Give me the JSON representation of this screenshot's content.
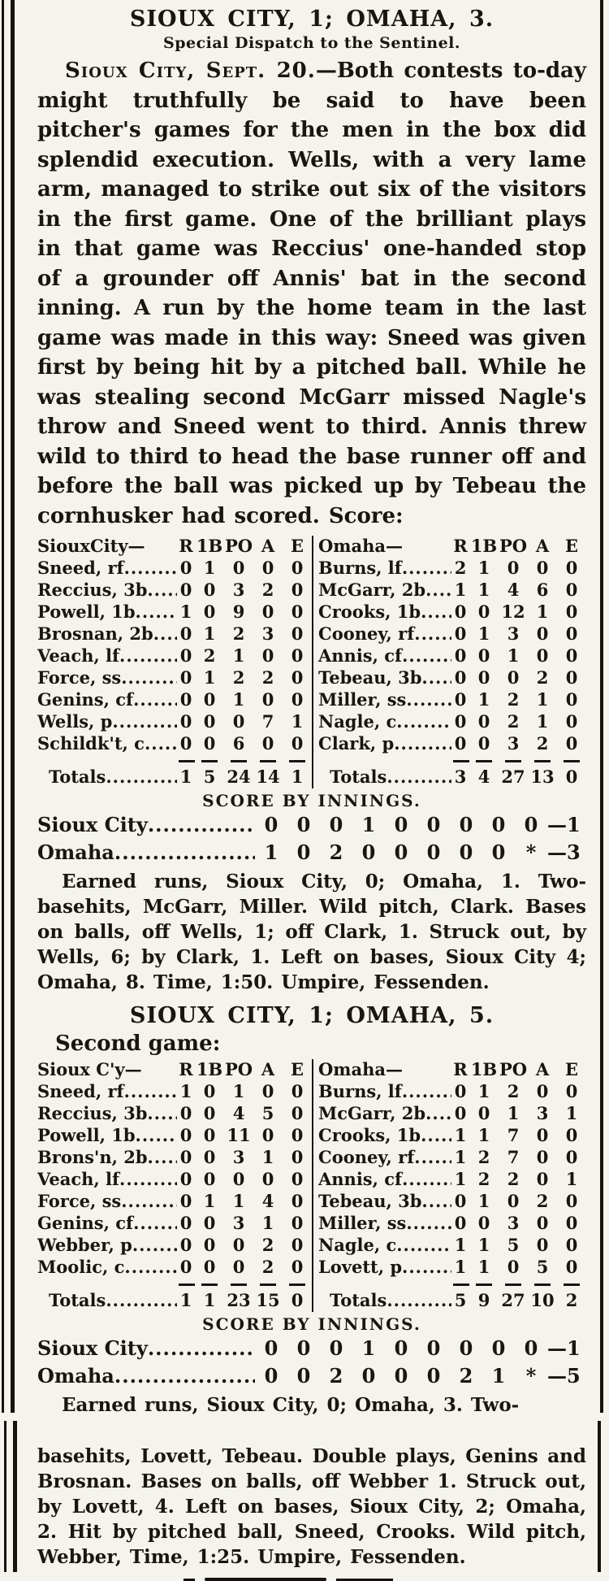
{
  "article": {
    "headline1": "SIOUX CITY, 1; OMAHA, 3.",
    "dispatch_credit": "Special Dispatch to the Sentinel.",
    "dateline": "Sioux City, Sept. 20.",
    "lead_body": "—Both contests to-day might truthfully be said to have been pitcher's games for the men in the box did splendid execution. Wells, with a very lame arm, managed to strike out six of the visitors in the first game. One of the brilliant plays in that game was Reccius' one-handed stop of a grounder off Annis' bat in the second inning. A run by the home team in the last game was made in this way: Sneed was given first by being hit by a pitched ball. While he was stealing second McGarr missed Nagle's throw and Sneed went to third. Annis threw wild to third to head the base runner off and before the ball was picked up by Tebeau the cornhusker had scored. Score:",
    "headline2": "SIOUX CITY, 1; OMAHA, 5.",
    "second_game_label": "Second game:"
  },
  "game1": {
    "stat_columns": [
      "R",
      "1B",
      "PO",
      "A",
      "E"
    ],
    "home": {
      "team_label": "SiouxCity—",
      "players": [
        {
          "name": "Sneed, rf",
          "stats": [
            "0",
            "1",
            "0",
            "0",
            "0"
          ]
        },
        {
          "name": "Reccius, 3b",
          "stats": [
            "0",
            "0",
            "3",
            "2",
            "0"
          ]
        },
        {
          "name": "Powell, 1b",
          "stats": [
            "1",
            "0",
            "9",
            "0",
            "0"
          ]
        },
        {
          "name": "Brosnan, 2b",
          "stats": [
            "0",
            "1",
            "2",
            "3",
            "0"
          ]
        },
        {
          "name": "Veach, lf",
          "stats": [
            "0",
            "2",
            "1",
            "0",
            "0"
          ]
        },
        {
          "name": "Force, ss",
          "stats": [
            "0",
            "1",
            "2",
            "2",
            "0"
          ]
        },
        {
          "name": "Genins, cf",
          "stats": [
            "0",
            "0",
            "1",
            "0",
            "0"
          ]
        },
        {
          "name": "Wells, p",
          "stats": [
            "0",
            "0",
            "0",
            "7",
            "1"
          ]
        },
        {
          "name": "Schildk't, c",
          "stats": [
            "0",
            "0",
            "6",
            "0",
            "0"
          ]
        }
      ],
      "totals_label": "Totals",
      "totals": [
        "1",
        "5",
        "24",
        "14",
        "1"
      ]
    },
    "visitors": {
      "team_label": "Omaha—",
      "players": [
        {
          "name": "Burns, lf",
          "stats": [
            "2",
            "1",
            "0",
            "0",
            "0"
          ]
        },
        {
          "name": "McGarr, 2b",
          "stats": [
            "1",
            "1",
            "4",
            "6",
            "0"
          ]
        },
        {
          "name": "Crooks, 1b",
          "stats": [
            "0",
            "0",
            "12",
            "1",
            "0"
          ]
        },
        {
          "name": "Cooney, rf",
          "stats": [
            "0",
            "1",
            "3",
            "0",
            "0"
          ]
        },
        {
          "name": "Annis, cf",
          "stats": [
            "0",
            "0",
            "1",
            "0",
            "0"
          ]
        },
        {
          "name": "Tebeau, 3b",
          "stats": [
            "0",
            "0",
            "0",
            "2",
            "0"
          ]
        },
        {
          "name": "Miller, ss",
          "stats": [
            "0",
            "1",
            "2",
            "1",
            "0"
          ]
        },
        {
          "name": "Nagle, c",
          "stats": [
            "0",
            "0",
            "2",
            "1",
            "0"
          ]
        },
        {
          "name": "Clark, p",
          "stats": [
            "0",
            "0",
            "3",
            "2",
            "0"
          ]
        }
      ],
      "totals_label": "Totals",
      "totals": [
        "3",
        "4",
        "27",
        "13",
        "0"
      ]
    },
    "score_by_innings": {
      "title": "SCORE BY INNINGS.",
      "rows": [
        {
          "team": "Sioux City",
          "innings": [
            "0",
            "0",
            "0",
            "1",
            "0",
            "0",
            "0",
            "0",
            "0"
          ],
          "total": "1"
        },
        {
          "team": "Omaha",
          "innings": [
            "1",
            "0",
            "2",
            "0",
            "0",
            "0",
            "0",
            "0",
            "*"
          ],
          "total": "3"
        }
      ]
    },
    "notes": "Earned runs, Sioux City, 0; Omaha, 1. Two-basehits, McGarr, Miller. Wild pitch, Clark. Bases on balls, off Wells, 1; off Clark, 1. Struck out, by Wells, 6; by Clark, 1. Left on bases, Sioux City 4; Omaha, 8. Time, 1:50. Umpire, Fessenden."
  },
  "game2": {
    "stat_columns": [
      "R",
      "1B",
      "PO",
      "A",
      "E"
    ],
    "home": {
      "team_label": "Sioux C'y—",
      "players": [
        {
          "name": "Sneed, rf",
          "stats": [
            "1",
            "0",
            "1",
            "0",
            "0"
          ]
        },
        {
          "name": "Reccius, 3b",
          "stats": [
            "0",
            "0",
            "4",
            "5",
            "0"
          ]
        },
        {
          "name": "Powell, 1b",
          "stats": [
            "0",
            "0",
            "11",
            "0",
            "0"
          ]
        },
        {
          "name": "Brons'n, 2b",
          "stats": [
            "0",
            "0",
            "3",
            "1",
            "0"
          ]
        },
        {
          "name": "Veach, lf",
          "stats": [
            "0",
            "0",
            "0",
            "0",
            "0"
          ]
        },
        {
          "name": "Force, ss",
          "stats": [
            "0",
            "1",
            "1",
            "4",
            "0"
          ]
        },
        {
          "name": "Genins, cf",
          "stats": [
            "0",
            "0",
            "3",
            "1",
            "0"
          ]
        },
        {
          "name": "Webber, p",
          "stats": [
            "0",
            "0",
            "0",
            "2",
            "0"
          ]
        },
        {
          "name": "Moolic, c",
          "stats": [
            "0",
            "0",
            "0",
            "2",
            "0"
          ]
        }
      ],
      "totals_label": "Totals",
      "totals": [
        "1",
        "1",
        "23",
        "15",
        "0"
      ]
    },
    "visitors": {
      "team_label": "Omaha—",
      "players": [
        {
          "name": "Burns, lf",
          "stats": [
            "0",
            "1",
            "2",
            "0",
            "0"
          ]
        },
        {
          "name": "McGarr, 2b",
          "stats": [
            "0",
            "0",
            "1",
            "3",
            "1"
          ]
        },
        {
          "name": "Crooks, 1b",
          "stats": [
            "1",
            "1",
            "7",
            "0",
            "0"
          ]
        },
        {
          "name": "Cooney, rf",
          "stats": [
            "1",
            "2",
            "7",
            "0",
            "0"
          ]
        },
        {
          "name": "Annis, cf",
          "stats": [
            "1",
            "2",
            "2",
            "0",
            "1"
          ]
        },
        {
          "name": "Tebeau, 3b",
          "stats": [
            "0",
            "1",
            "0",
            "2",
            "0"
          ]
        },
        {
          "name": "Miller, ss",
          "stats": [
            "0",
            "0",
            "3",
            "0",
            "0"
          ]
        },
        {
          "name": "Nagle, c",
          "stats": [
            "1",
            "1",
            "5",
            "0",
            "0"
          ]
        },
        {
          "name": "Lovett, p",
          "stats": [
            "1",
            "1",
            "0",
            "5",
            "0"
          ]
        }
      ],
      "totals_label": "Totals",
      "totals": [
        "5",
        "9",
        "27",
        "10",
        "2"
      ]
    },
    "score_by_innings": {
      "title": "SCORE BY INNINGS.",
      "rows": [
        {
          "team": "Sioux City",
          "innings": [
            "0",
            "0",
            "0",
            "1",
            "0",
            "0",
            "0",
            "0",
            "0"
          ],
          "total": "1"
        },
        {
          "team": "Omaha",
          "innings": [
            "0",
            "0",
            "2",
            "0",
            "0",
            "0",
            "2",
            "1",
            "*"
          ],
          "total": "5"
        }
      ]
    },
    "notes_part1": "Earned runs, Sioux City, 0; Omaha, 3. Two-",
    "notes_part2": "basehits, Lovett, Tebeau. Double plays, Genins and Brosnan. Bases on balls, off Webber 1. Struck out, by Lovett, 4. Left on bases, Sioux City, 2; Omaha, 2. Hit by pitched ball, Sneed, Crooks. Wild pitch, Webber, Time, 1:25. Umpire, Fessenden."
  }
}
